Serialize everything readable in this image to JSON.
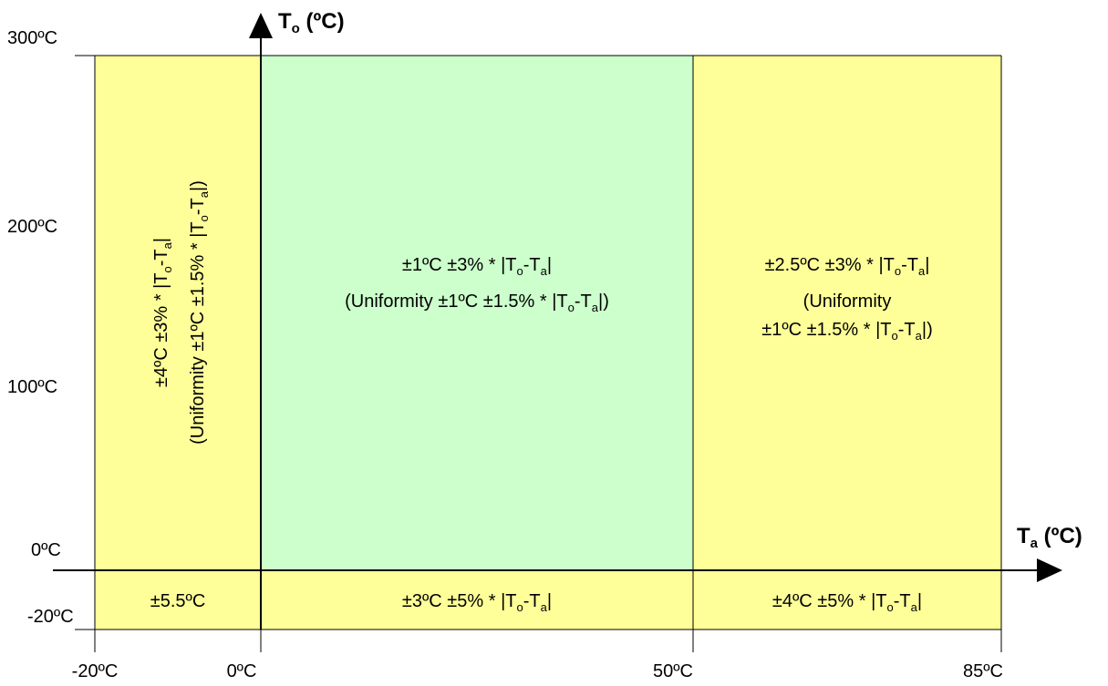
{
  "axes": {
    "x_title_main": "T",
    "x_title_sub": "a",
    "x_title_unit": " (ºC)",
    "y_title_main": "T",
    "y_title_sub": "o",
    "y_title_unit": " (ºC)",
    "x_ticks": [
      "-20ºC",
      "0ºC",
      "50ºC",
      "85ºC"
    ],
    "y_ticks": [
      "300ºC",
      "200ºC",
      "100ºC",
      "0ºC",
      "-20ºC"
    ]
  },
  "colors": {
    "yellow_region": "#FFFF99",
    "green_region": "#CCFFCC",
    "line": "#000000"
  },
  "regions": {
    "left_upper": {
      "line1_a": "±4ºC ±3% * |T",
      "line1_sub1": "o",
      "line1_b": "-T",
      "line1_sub2": "a",
      "line1_c": "|",
      "line2_a": "(Uniformity ±1ºC ±1.5% * |T",
      "line2_sub1": "o",
      "line2_b": "-T",
      "line2_sub2": "a",
      "line2_c": "|)"
    },
    "center_upper": {
      "line1_a": "±1ºC ±3% * |T",
      "line1_sub1": "o",
      "line1_b": "-T",
      "line1_sub2": "a",
      "line1_c": "|",
      "line2_a": "(Uniformity ±1ºC ±1.5% * |T",
      "line2_sub1": "o",
      "line2_b": "-T",
      "line2_sub2": "a",
      "line2_c": "|)"
    },
    "right_upper": {
      "line1_a": "±2.5ºC ±3% * |T",
      "line1_sub1": "o",
      "line1_b": "-T",
      "line1_sub2": "a",
      "line1_c": "|",
      "line2": "(Uniformity",
      "line3_a": "±1ºC ±1.5% * |T",
      "line3_sub1": "o",
      "line3_b": "-T",
      "line3_sub2": "a",
      "line3_c": "|)"
    },
    "left_lower": {
      "text": "±5.5ºC"
    },
    "center_lower": {
      "text_a": "±3ºC ±5% * |T",
      "sub1": "o",
      "text_b": "-T",
      "sub2": "a",
      "text_c": "|"
    },
    "right_lower": {
      "text_a": "±4ºC ±5% * |T",
      "sub1": "o",
      "text_b": "-T",
      "sub2": "a",
      "text_c": "|"
    }
  }
}
